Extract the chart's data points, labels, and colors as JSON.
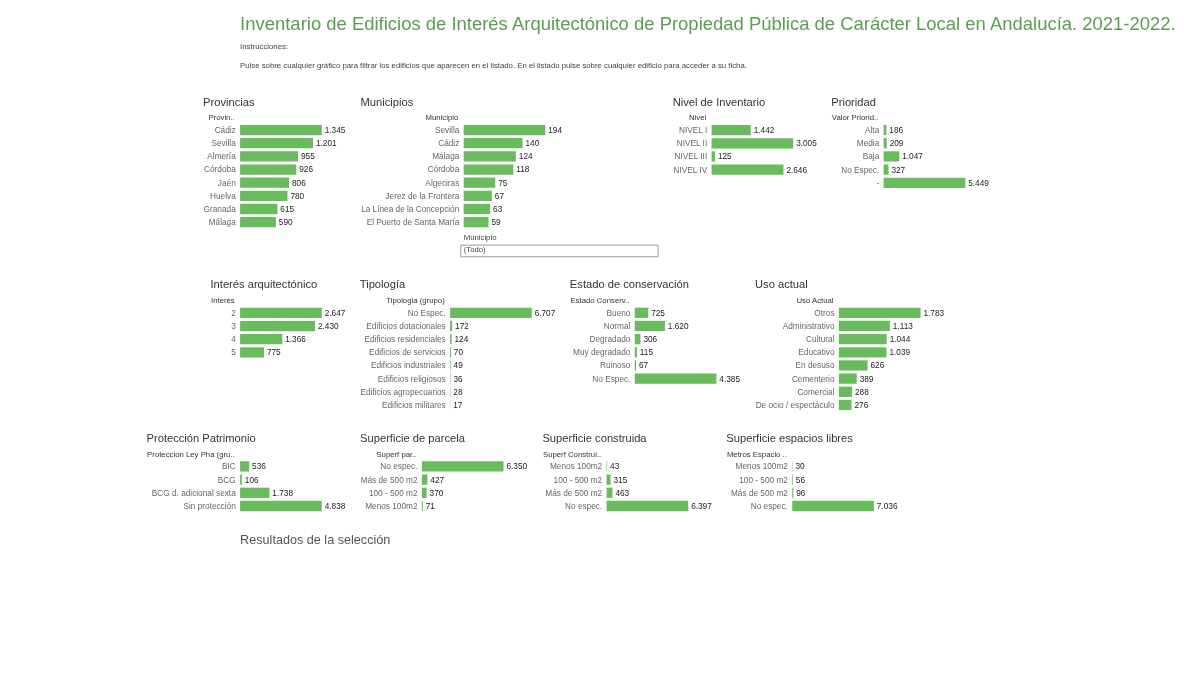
{
  "chart_data": [
    {
      "type": "other",
      "title": "Inventario de Edificios de Interés Arquitectónico de Propiedad Pública de Carácter Local en Andalucía. 2021-2022.",
      "annotations": [
        "Instrucciones:",
        "Pulse sobre cualquier gráfico para filtrar los edificios que aparecen en el listado. En el listado pulse sobre cualquier edificio para acceder a su ficha."
      ]
    },
    {
      "type": "bar",
      "orientation": "horizontal",
      "title": "Provincias",
      "ylabel": "Provin..",
      "color": "#6aba5e",
      "categories": [
        "Cádiz",
        "Sevilla",
        "Almería",
        "Córdoba",
        "Jaén",
        "Huelva",
        "Granada",
        "Málaga"
      ],
      "values": [
        1345,
        1201,
        955,
        926,
        806,
        780,
        615,
        590
      ],
      "value_labels": [
        "1.345",
        "1.201",
        "955",
        "926",
        "806",
        "780",
        "615",
        "590"
      ]
    },
    {
      "type": "bar",
      "orientation": "horizontal",
      "title": "Municipios",
      "ylabel": "Municipio",
      "color": "#6aba5e",
      "categories": [
        "Sevilla",
        "Cádiz",
        "Málaga",
        "Córdoba",
        "Algeciras",
        "Jerez de la Frontera",
        "La Línea de la Concepción",
        "El Puerto de Santa María"
      ],
      "values": [
        194,
        140,
        124,
        118,
        75,
        67,
        63,
        59
      ],
      "value_labels": [
        "194",
        "140",
        "124",
        "118",
        "75",
        "67",
        "63",
        "59"
      ],
      "annotations": [
        "Municipio",
        "(Todo)"
      ]
    },
    {
      "type": "bar",
      "orientation": "horizontal",
      "title": "Nivel de Inventario",
      "ylabel": "Nivel",
      "color": "#6aba5e",
      "categories": [
        "NIVEL I",
        "NIVEL II",
        "NIVEL III",
        "NIVEL IV"
      ],
      "values": [
        1442,
        3005,
        125,
        2646
      ],
      "value_labels": [
        "1.442",
        "3.005",
        "125",
        "2.646"
      ]
    },
    {
      "type": "bar",
      "orientation": "horizontal",
      "title": "Prioridad",
      "ylabel": "Valor Priorid..",
      "color": "#6aba5e",
      "categories": [
        "Alta",
        "Media",
        "Baja",
        "No Espec.",
        "-"
      ],
      "values": [
        186,
        209,
        1047,
        327,
        5449
      ],
      "value_labels": [
        "186",
        "209",
        "1.047",
        "327",
        "5.449"
      ]
    },
    {
      "type": "bar",
      "orientation": "horizontal",
      "title": "Interés arquitectónico",
      "ylabel": "Interés",
      "color": "#6aba5e",
      "categories": [
        "2",
        "3",
        "4",
        "5"
      ],
      "values": [
        2647,
        2430,
        1366,
        775
      ],
      "value_labels": [
        "2.647",
        "2.430",
        "1.366",
        "775"
      ]
    },
    {
      "type": "bar",
      "orientation": "horizontal",
      "title": "Tipología",
      "ylabel": "Tipologia (grupo)",
      "color": "#6aba5e",
      "categories": [
        "No Espec.",
        "Edificios dotacionales",
        "Edificios residenciales",
        "Edificios de servicios",
        "Edificios industriales",
        "Edificios religiosos",
        "Edificios agropecuarios",
        "Edificios militares"
      ],
      "values": [
        6707,
        172,
        124,
        70,
        49,
        36,
        28,
        17
      ],
      "value_labels": [
        "6.707",
        "172",
        "124",
        "70",
        "49",
        "36",
        "28",
        "17"
      ]
    },
    {
      "type": "bar",
      "orientation": "horizontal",
      "title": "Estado de conservación",
      "ylabel": "Estado Conserv..",
      "color": "#6aba5e",
      "categories": [
        "Bueno",
        "Normal",
        "Degradado",
        "Muy degradado",
        "Ruinoso",
        "No Espec."
      ],
      "values": [
        725,
        1620,
        306,
        115,
        67,
        4385
      ],
      "value_labels": [
        "725",
        "1.620",
        "306",
        "115",
        "67",
        "4.385"
      ]
    },
    {
      "type": "bar",
      "orientation": "horizontal",
      "title": "Uso actual",
      "ylabel": "Uso Actual",
      "color": "#6aba5e",
      "categories": [
        "Otros",
        "Administrativo",
        "Cultural",
        "Educativo",
        "En desuso",
        "Cementerio",
        "Comercial",
        "De ocio / espectáculo"
      ],
      "values": [
        1783,
        1113,
        1044,
        1039,
        626,
        389,
        288,
        276
      ],
      "value_labels": [
        "1.783",
        "1.113",
        "1.044",
        "1.039",
        "626",
        "389",
        "288",
        "276"
      ]
    },
    {
      "type": "bar",
      "orientation": "horizontal",
      "title": "Protección Patrimonio",
      "ylabel": "Proteccion Ley Pha (gru..",
      "color": "#6aba5e",
      "categories": [
        "BIC",
        "BCG",
        "BCG d. adicional sexta",
        "Sin protección"
      ],
      "values": [
        536,
        106,
        1738,
        4838
      ],
      "value_labels": [
        "536",
        "106",
        "1.738",
        "4.838"
      ]
    },
    {
      "type": "bar",
      "orientation": "horizontal",
      "title": "Superficie de parcela",
      "ylabel": "Superf par..",
      "color": "#6aba5e",
      "categories": [
        "No espec.",
        "Más de 500 m2",
        "100 - 500 m2",
        "Menos 100m2"
      ],
      "values": [
        6350,
        427,
        370,
        71
      ],
      "value_labels": [
        "6.350",
        "427",
        "370",
        "71"
      ]
    },
    {
      "type": "bar",
      "orientation": "horizontal",
      "title": "Superficie construida",
      "ylabel": "Superf Construi..",
      "color": "#6aba5e",
      "categories": [
        "Menos 100m2",
        "100 - 500 m2",
        "Más de 500 m2",
        "No espec."
      ],
      "values": [
        43,
        315,
        463,
        6397
      ],
      "value_labels": [
        "43",
        "315",
        "463",
        "6.397"
      ]
    },
    {
      "type": "bar",
      "orientation": "horizontal",
      "title": "Superficie espacios libres",
      "ylabel": "Metros Espacio ..",
      "color": "#6aba5e",
      "categories": [
        "Menos 100m2",
        "100 - 500 m2",
        "Más de 500 m2",
        "No espec."
      ],
      "values": [
        30,
        56,
        96,
        7036
      ],
      "value_labels": [
        "30",
        "56",
        "96",
        "7.036"
      ]
    },
    {
      "type": "other",
      "title": "Resultados de la selección"
    }
  ]
}
